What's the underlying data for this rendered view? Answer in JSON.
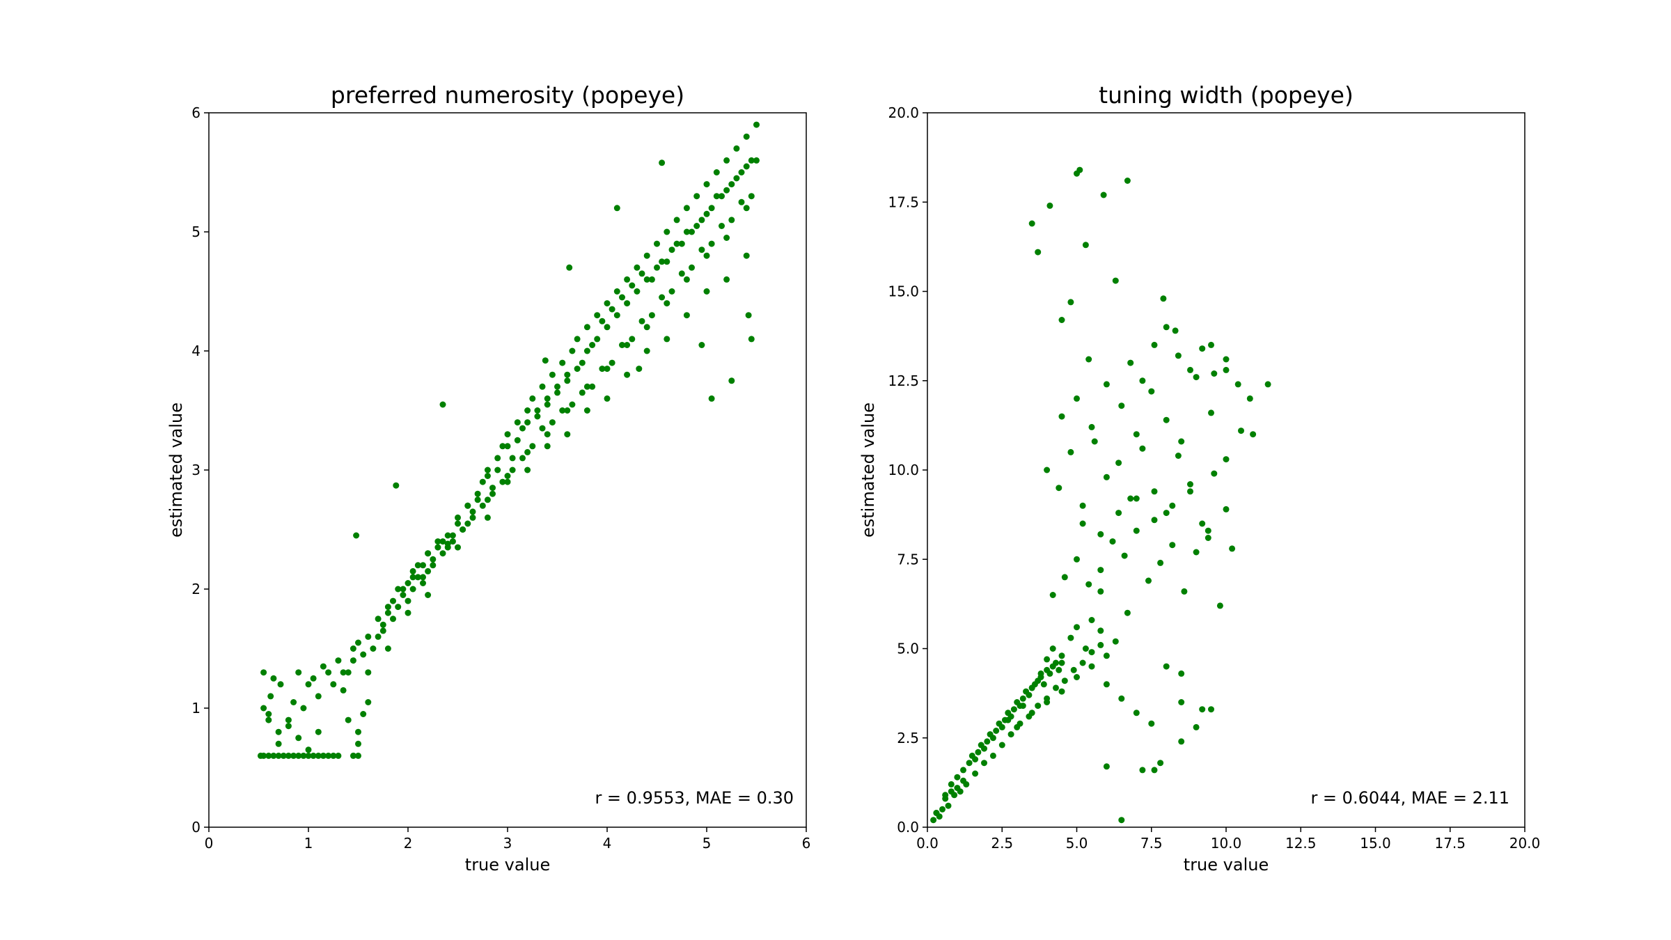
{
  "colors": {
    "points": "#008000",
    "axes": "#000000",
    "background": "#ffffff"
  },
  "chart_data": [
    {
      "type": "scatter",
      "title": "preferred numerosity (popeye)",
      "xlabel": "true value",
      "ylabel": "estimated value",
      "xlim": [
        0,
        6
      ],
      "ylim": [
        0,
        6
      ],
      "xticks": [
        0,
        1,
        2,
        3,
        4,
        5,
        6
      ],
      "yticks": [
        0,
        1,
        2,
        3,
        4,
        5,
        6
      ],
      "xtick_labels": [
        "0",
        "1",
        "2",
        "3",
        "4",
        "5",
        "6"
      ],
      "ytick_labels": [
        "0",
        "1",
        "2",
        "3",
        "4",
        "5",
        "6"
      ],
      "grid": false,
      "annotation": "r = 0.9553, MAE = 0.30",
      "series": [
        {
          "color": "#008000",
          "x": [
            0.52,
            0.55,
            0.6,
            0.65,
            0.7,
            0.75,
            0.8,
            0.85,
            0.9,
            0.95,
            1.0,
            1.05,
            1.1,
            1.15,
            1.2,
            1.25,
            1.3,
            1.45,
            1.5,
            1.5,
            0.55,
            0.6,
            0.62,
            0.7,
            0.72,
            0.8,
            0.85,
            0.9,
            0.95,
            1.0,
            1.05,
            1.1,
            1.15,
            1.2,
            1.25,
            1.3,
            1.35,
            1.4,
            1.45,
            0.55,
            0.6,
            0.65,
            0.7,
            0.8,
            0.9,
            1.0,
            1.1,
            1.4,
            1.5,
            1.55,
            1.6,
            1.35,
            1.45,
            1.5,
            1.55,
            1.6,
            1.65,
            1.7,
            1.75,
            1.8,
            1.85,
            1.9,
            1.95,
            2.0,
            2.05,
            2.1,
            2.15,
            2.2,
            2.25,
            2.3,
            2.35,
            2.4,
            2.45,
            2.5,
            2.55,
            2.6,
            2.65,
            2.7,
            2.75,
            2.8,
            2.85,
            2.9,
            2.95,
            3.0,
            3.05,
            3.1,
            3.15,
            3.2,
            3.25,
            3.3,
            3.35,
            3.4,
            3.45,
            3.5,
            3.55,
            3.6,
            3.65,
            3.7,
            3.75,
            3.8,
            3.85,
            3.9,
            3.95,
            4.0,
            4.05,
            4.1,
            4.15,
            4.2,
            4.25,
            4.3,
            4.35,
            4.4,
            4.45,
            4.5,
            4.55,
            4.6,
            4.65,
            4.7,
            4.75,
            4.8,
            4.85,
            4.9,
            4.95,
            5.0,
            5.05,
            5.1,
            5.15,
            5.2,
            5.25,
            5.3,
            5.35,
            5.4,
            5.45,
            5.5,
            1.7,
            1.75,
            1.8,
            1.85,
            1.9,
            2.0,
            2.05,
            2.1,
            2.15,
            2.2,
            2.3,
            2.4,
            2.5,
            2.6,
            2.7,
            2.8,
            2.9,
            3.0,
            3.1,
            3.2,
            3.3,
            3.4,
            3.5,
            3.6,
            3.7,
            3.8,
            3.9,
            4.0,
            4.1,
            4.2,
            4.3,
            4.4,
            4.5,
            4.6,
            4.7,
            4.8,
            4.9,
            5.0,
            5.1,
            5.2,
            5.3,
            5.4,
            5.5,
            1.6,
            1.8,
            2.0,
            2.2,
            2.5,
            2.8,
            3.0,
            3.2,
            3.4,
            3.6,
            3.8,
            4.0,
            4.2,
            4.4,
            4.6,
            4.8,
            5.0,
            5.2,
            5.4,
            1.48,
            1.88,
            2.35,
            3.38,
            3.62,
            4.1,
            4.32,
            4.55,
            4.95,
            5.05,
            5.25,
            5.42,
            5.45,
            1.95,
            2.05,
            2.15,
            2.25,
            2.35,
            2.45,
            2.55,
            2.65,
            2.75,
            2.85,
            2.95,
            3.05,
            3.15,
            3.25,
            3.35,
            3.45,
            3.55,
            3.65,
            3.75,
            3.85,
            3.95,
            4.05,
            4.15,
            4.25,
            4.35,
            4.45,
            4.55,
            4.65,
            4.75,
            4.85,
            4.95,
            5.05,
            5.15,
            5.25,
            5.35,
            5.45,
            2.2,
            2.4,
            2.6,
            2.8,
            3.0,
            3.2,
            3.4,
            3.6,
            3.8,
            4.0,
            4.2,
            4.4,
            4.6,
            4.8,
            5.0,
            5.2,
            5.4
          ],
          "y": [
            0.6,
            0.6,
            0.6,
            0.6,
            0.6,
            0.6,
            0.6,
            0.6,
            0.6,
            0.6,
            0.6,
            0.6,
            0.6,
            0.6,
            0.6,
            0.6,
            0.6,
            0.6,
            0.6,
            0.7,
            1.0,
            0.9,
            1.1,
            0.8,
            1.2,
            0.9,
            1.05,
            1.3,
            1.0,
            1.2,
            1.25,
            1.1,
            1.35,
            1.3,
            1.2,
            1.4,
            1.15,
            1.3,
            1.5,
            1.3,
            0.95,
            1.25,
            0.7,
            0.85,
            0.75,
            0.65,
            0.8,
            0.9,
            0.8,
            0.95,
            1.05,
            1.3,
            1.4,
            1.55,
            1.45,
            1.6,
            1.5,
            1.75,
            1.65,
            1.8,
            1.9,
            1.85,
            2.0,
            2.05,
            2.15,
            2.1,
            2.2,
            2.3,
            2.25,
            2.35,
            2.4,
            2.38,
            2.45,
            2.55,
            2.5,
            2.7,
            2.65,
            2.8,
            2.9,
            3.0,
            2.85,
            3.1,
            3.2,
            3.3,
            3.1,
            3.4,
            3.35,
            3.5,
            3.6,
            3.45,
            3.7,
            3.55,
            3.8,
            3.65,
            3.9,
            3.75,
            4.0,
            4.1,
            3.9,
            4.2,
            4.05,
            4.3,
            4.25,
            4.4,
            4.35,
            4.5,
            4.45,
            4.6,
            4.55,
            4.7,
            4.65,
            4.8,
            4.6,
            4.9,
            4.75,
            5.0,
            4.85,
            5.1,
            4.9,
            5.2,
            5.0,
            5.3,
            5.1,
            5.4,
            5.2,
            5.5,
            5.3,
            5.6,
            5.4,
            5.7,
            5.5,
            5.8,
            5.6,
            5.9,
            1.6,
            1.7,
            1.85,
            1.75,
            2.0,
            1.9,
            2.1,
            2.2,
            2.05,
            2.3,
            2.4,
            2.45,
            2.6,
            2.7,
            2.75,
            2.95,
            3.0,
            3.2,
            3.25,
            3.4,
            3.5,
            3.6,
            3.7,
            3.8,
            3.85,
            4.0,
            4.1,
            4.2,
            4.3,
            4.4,
            4.5,
            4.6,
            4.7,
            4.75,
            4.9,
            5.0,
            5.05,
            5.15,
            5.3,
            5.35,
            5.45,
            5.55,
            5.6,
            1.3,
            1.5,
            1.8,
            1.95,
            2.35,
            2.6,
            2.9,
            3.0,
            3.2,
            3.3,
            3.5,
            3.6,
            3.8,
            4.0,
            4.1,
            4.3,
            4.5,
            4.6,
            4.8,
            2.45,
            2.87,
            3.55,
            3.92,
            4.7,
            5.2,
            3.85,
            5.58,
            4.05,
            3.6,
            3.75,
            4.3,
            4.1,
            1.95,
            2.0,
            2.1,
            2.2,
            2.3,
            2.4,
            2.5,
            2.6,
            2.7,
            2.8,
            2.9,
            3.0,
            3.1,
            3.2,
            3.35,
            3.4,
            3.5,
            3.55,
            3.65,
            3.7,
            3.85,
            3.9,
            4.05,
            4.1,
            4.25,
            4.3,
            4.45,
            4.5,
            4.65,
            4.7,
            4.85,
            4.9,
            5.05,
            5.1,
            5.25,
            5.3,
            2.15,
            2.35,
            2.55,
            2.75,
            2.95,
            3.15,
            3.3,
            3.5,
            3.7,
            3.85,
            4.05,
            4.2,
            4.4,
            4.6,
            4.8,
            4.95,
            5.2
          ]
        }
      ]
    },
    {
      "type": "scatter",
      "title": "tuning width (popeye)",
      "xlabel": "true value",
      "ylabel": "estimated value",
      "xlim": [
        0,
        20
      ],
      "ylim": [
        0,
        20
      ],
      "xticks": [
        0,
        2.5,
        5,
        7.5,
        10,
        12.5,
        15,
        17.5,
        20
      ],
      "yticks": [
        0,
        2.5,
        5,
        7.5,
        10,
        12.5,
        15,
        17.5,
        20
      ],
      "xtick_labels": [
        "0.0",
        "2.5",
        "5.0",
        "7.5",
        "10.0",
        "12.5",
        "15.0",
        "17.5",
        "20.0"
      ],
      "ytick_labels": [
        "0.0",
        "2.5",
        "5.0",
        "7.5",
        "10.0",
        "12.5",
        "15.0",
        "17.5",
        "20.0"
      ],
      "grid": false,
      "annotation": "r = 0.6044, MAE = 2.11",
      "series": [
        {
          "color": "#008000",
          "x": [
            0.2,
            0.3,
            0.4,
            0.5,
            0.6,
            0.7,
            0.8,
            0.9,
            1.0,
            1.1,
            1.2,
            1.3,
            0.3,
            0.6,
            0.8,
            1.0,
            1.2,
            1.4,
            1.5,
            1.6,
            1.7,
            1.8,
            1.9,
            2.0,
            2.1,
            2.2,
            2.3,
            2.4,
            2.5,
            2.6,
            2.7,
            2.8,
            2.9,
            3.0,
            3.1,
            3.2,
            3.3,
            3.4,
            3.5,
            3.6,
            3.7,
            3.8,
            3.9,
            4.0,
            4.1,
            4.2,
            4.3,
            4.4,
            4.5,
            1.6,
            1.9,
            2.2,
            2.5,
            2.8,
            3.1,
            3.4,
            3.7,
            4.0,
            4.3,
            4.6,
            4.9,
            5.2,
            5.5,
            5.8,
            2.7,
            3.2,
            3.5,
            3.8,
            4.0,
            4.2,
            4.5,
            4.8,
            5.0,
            5.3,
            5.5,
            5.8,
            6.0,
            6.3,
            3.0,
            3.5,
            4.0,
            4.5,
            5.0,
            5.5,
            6.0,
            6.5,
            7.0,
            7.5,
            8.0,
            8.5,
            9.0,
            9.5,
            4.2,
            4.6,
            5.0,
            5.4,
            5.8,
            6.2,
            6.6,
            7.0,
            7.4,
            7.8,
            8.2,
            8.6,
            9.0,
            9.4,
            9.8,
            10.2,
            4.0,
            4.4,
            4.8,
            5.2,
            5.6,
            6.0,
            6.4,
            6.8,
            7.2,
            7.6,
            8.0,
            8.4,
            8.8,
            9.2,
            9.6,
            10.0,
            4.5,
            5.0,
            5.5,
            6.0,
            6.5,
            7.0,
            7.5,
            8.0,
            8.5,
            9.0,
            9.5,
            10.0,
            10.5,
            5.2,
            5.8,
            6.4,
            7.0,
            7.6,
            8.2,
            8.8,
            9.4,
            10.0,
            6.8,
            7.2,
            7.6,
            8.0,
            8.4,
            8.8,
            9.2,
            9.6,
            10.0,
            10.4,
            10.8,
            11.4,
            3.5,
            3.7,
            4.1,
            4.5,
            5.0,
            5.1,
            5.3,
            5.9,
            6.7,
            4.8,
            5.4,
            6.3,
            7.9,
            8.3,
            9.5,
            10.9,
            6.0,
            6.5,
            7.2,
            7.8,
            8.5,
            9.2,
            7.6,
            8.5,
            5.8,
            6.7
          ],
          "y": [
            0.2,
            0.4,
            0.3,
            0.5,
            0.8,
            0.6,
            1.0,
            0.9,
            1.1,
            1.0,
            1.3,
            1.2,
            0.4,
            0.9,
            1.2,
            1.4,
            1.6,
            1.8,
            2.0,
            1.9,
            2.1,
            2.3,
            2.2,
            2.4,
            2.6,
            2.5,
            2.7,
            2.9,
            2.8,
            3.0,
            3.2,
            3.1,
            3.3,
            3.5,
            3.4,
            3.6,
            3.8,
            3.7,
            3.9,
            4.0,
            4.1,
            4.2,
            4.0,
            4.4,
            4.3,
            4.5,
            4.6,
            4.4,
            4.8,
            1.5,
            1.8,
            2.0,
            2.3,
            2.6,
            2.9,
            3.1,
            3.4,
            3.6,
            3.9,
            4.1,
            4.4,
            4.6,
            4.9,
            5.1,
            3.0,
            3.4,
            3.9,
            4.3,
            4.7,
            5.0,
            4.6,
            5.3,
            5.6,
            5.0,
            5.8,
            5.5,
            4.8,
            5.2,
            2.8,
            3.2,
            3.5,
            3.8,
            4.2,
            4.5,
            4.0,
            3.6,
            3.2,
            2.9,
            4.5,
            3.5,
            2.8,
            3.3,
            6.5,
            7.0,
            7.5,
            6.8,
            7.2,
            8.0,
            7.6,
            8.3,
            6.9,
            7.4,
            7.9,
            6.6,
            7.7,
            8.1,
            6.2,
            7.8,
            10.0,
            9.5,
            10.5,
            9.0,
            10.8,
            9.8,
            10.2,
            9.2,
            10.6,
            9.4,
            8.8,
            10.4,
            9.6,
            8.5,
            9.9,
            10.3,
            11.5,
            12.0,
            11.2,
            12.4,
            11.8,
            11.0,
            12.2,
            11.4,
            10.8,
            12.6,
            11.6,
            12.8,
            11.1,
            8.5,
            8.2,
            8.8,
            9.2,
            8.6,
            9.0,
            9.4,
            8.3,
            8.9,
            13.0,
            12.5,
            13.5,
            14.0,
            13.2,
            12.8,
            13.4,
            12.7,
            13.1,
            12.4,
            12.0,
            12.4,
            16.9,
            16.1,
            17.4,
            14.2,
            18.3,
            18.4,
            16.3,
            17.7,
            18.1,
            14.7,
            13.1,
            15.3,
            14.8,
            13.9,
            13.5,
            11.0,
            1.7,
            0.2,
            1.6,
            1.8,
            2.4,
            3.3,
            1.6,
            4.3,
            6.6,
            6.0
          ]
        }
      ]
    }
  ]
}
